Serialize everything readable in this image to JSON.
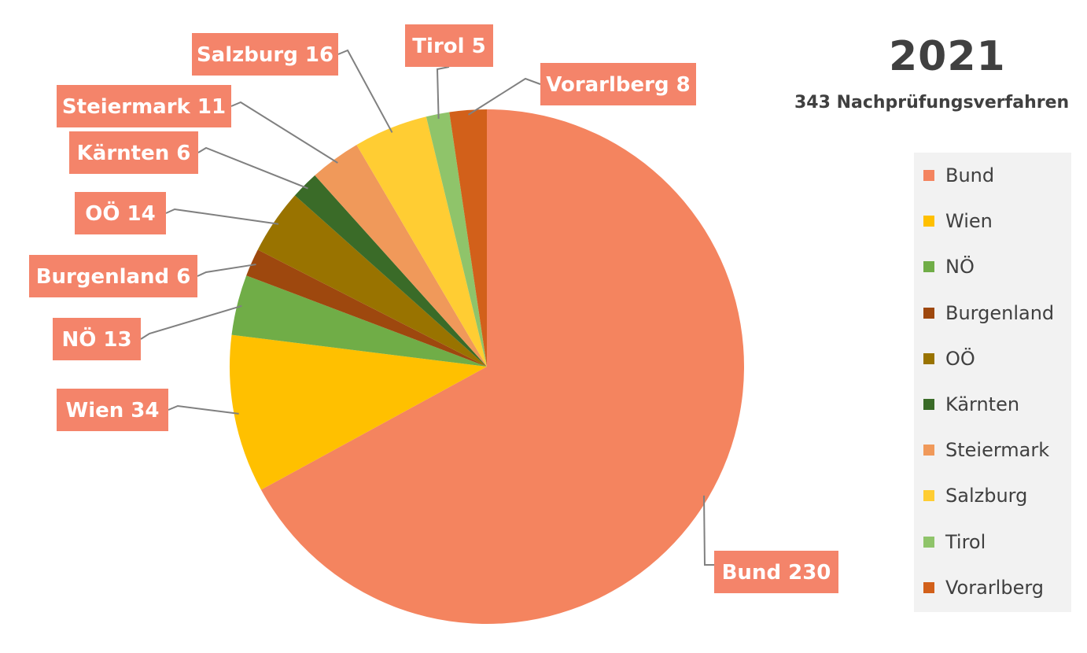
{
  "chart_data": {
    "type": "pie",
    "title": "2021",
    "subtitle": "343 Nachprüfungsverfahren",
    "legend_position": "right",
    "label_box_color": "#f4846a",
    "leader_line_color": "#808080",
    "slices": [
      {
        "name": "Bund",
        "value": 230,
        "color": "#f4845f",
        "label": "Bund 230"
      },
      {
        "name": "Wien",
        "value": 34,
        "color": "#ffc000",
        "label": "Wien 34"
      },
      {
        "name": "NÖ",
        "value": 13,
        "color": "#70ad47",
        "label": "NÖ 13"
      },
      {
        "name": "Burgenland",
        "value": 6,
        "color": "#9e480e",
        "label": "Burgenland 6"
      },
      {
        "name": "OÖ",
        "value": 14,
        "color": "#997300",
        "label": "OÖ 14"
      },
      {
        "name": "Kärnten",
        "value": 6,
        "color": "#3a6b28",
        "label": "Kärnten 6"
      },
      {
        "name": "Steiermark",
        "value": 11,
        "color": "#f0995a",
        "label": "Steiermark 11"
      },
      {
        "name": "Salzburg",
        "value": 16,
        "color": "#ffcd33",
        "label": "Salzburg 16"
      },
      {
        "name": "Tirol",
        "value": 5,
        "color": "#8fc46a",
        "label": "Tirol 5"
      },
      {
        "name": "Vorarlberg",
        "value": 8,
        "color": "#d2601a",
        "label": "Vorarlberg 8"
      }
    ]
  }
}
